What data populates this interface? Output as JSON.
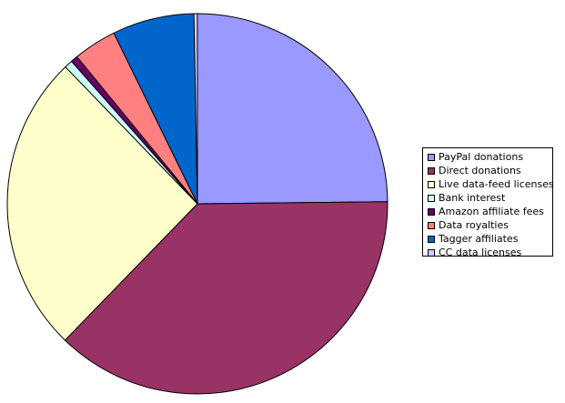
{
  "chart_data": {
    "type": "pie",
    "title": "",
    "categories": [
      "PayPal donations",
      "Direct donations",
      "Live data-feed licenses",
      "Bank interest",
      "Amazon affiliate fees",
      "Data royalties",
      "Tagger affiliates",
      "CC data licenses"
    ],
    "values": [
      25.0,
      37.7,
      25.7,
      0.7,
      0.6,
      3.7,
      7.0,
      0.3
    ],
    "colors": [
      "#9999ff",
      "#993366",
      "#ffffcc",
      "#ccffff",
      "#660066",
      "#ff8080",
      "#0066cc",
      "#ccccff"
    ],
    "legend_position": "right",
    "start_angle": "12 o'clock",
    "direction": "clockwise"
  }
}
